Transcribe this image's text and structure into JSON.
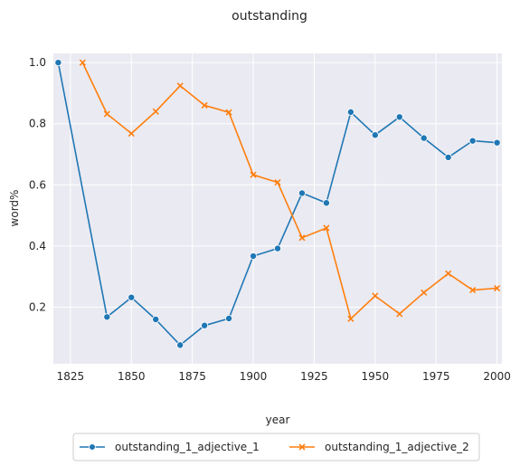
{
  "chart_data": {
    "type": "line",
    "title": "outstanding",
    "xlabel": "year",
    "ylabel": "word%",
    "xlim": [
      1818,
      2002
    ],
    "ylim": [
      0.015,
      1.03
    ],
    "xticks": [
      1825,
      1850,
      1875,
      1900,
      1925,
      1950,
      1975,
      2000
    ],
    "yticks": [
      0.2,
      0.4,
      0.6,
      0.8,
      1.0
    ],
    "xtick_labels": [
      "1825",
      "1850",
      "1875",
      "1900",
      "1925",
      "1950",
      "1975",
      "2000"
    ],
    "ytick_labels": [
      "0.2",
      "0.4",
      "0.6",
      "0.8",
      "1.0"
    ],
    "grid": true,
    "legend_position": "bottom-center",
    "background": "#eaeaf2",
    "series": [
      {
        "name": "outstanding_1_adjective_1",
        "color": "#1f77b4",
        "marker": "circle",
        "x": [
          1820,
          1840,
          1850,
          1860,
          1870,
          1880,
          1890,
          1900,
          1910,
          1920,
          1930,
          1940,
          1950,
          1960,
          1970,
          1980,
          1990,
          2000
        ],
        "y": [
          1.0,
          0.168,
          0.232,
          0.16,
          0.076,
          0.14,
          0.163,
          0.367,
          0.392,
          0.573,
          0.541,
          0.838,
          0.763,
          0.822,
          0.753,
          0.69,
          0.744,
          0.738
        ]
      },
      {
        "name": "outstanding_1_adjective_2",
        "color": "#ff7f0e",
        "marker": "x",
        "x": [
          1830,
          1840,
          1850,
          1860,
          1870,
          1880,
          1890,
          1900,
          1910,
          1920,
          1930,
          1940,
          1950,
          1960,
          1970,
          1980,
          1990,
          2000
        ],
        "y": [
          1.0,
          0.832,
          0.768,
          0.84,
          0.924,
          0.86,
          0.837,
          0.633,
          0.608,
          0.427,
          0.459,
          0.162,
          0.237,
          0.178,
          0.248,
          0.31,
          0.256,
          0.262
        ]
      }
    ]
  }
}
